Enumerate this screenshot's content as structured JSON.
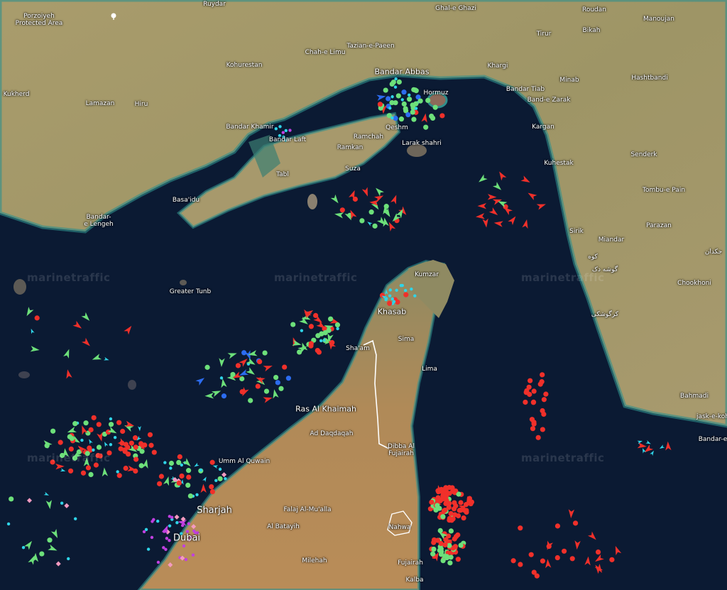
{
  "map": {
    "watermark": "marinetraffic",
    "colors": {
      "sea": "#0b1a33",
      "land_iran": "#a6996a",
      "land_uae": "#b48a58",
      "shallow_water": "#2f8f8c",
      "border": "#ffffff",
      "cargo_vessel": "#f0302a",
      "tanker_vessel": "#6de07a",
      "passenger_vessel": "#2c6cf0",
      "tug_special": "#2fd4e8",
      "pleasure_craft": "#c040e0",
      "navigation_aid": "#f49ac0"
    },
    "places": {
      "porzoiyeh": "Porzoiyeh\nProtected Area",
      "ruydar": "Ruydar",
      "ghal_e_ghazi": "Ghal-e Ghazi",
      "roudan": "Roudan",
      "manoujan": "Manoujan",
      "bikah": "Bikah",
      "tirur": "Tirur",
      "tazian": "Tazian-e-Paeen",
      "chah_e_limu": "Chah-e Limu",
      "kohurestan": "Kohurestan",
      "kukherd": "Kukherd",
      "lamazan": "Lamazan",
      "hiru": "Hiru",
      "bandar_khamir": "Bandar Khamir",
      "bandar_laft": "Bandar Laft",
      "ramchah": "Ramchah",
      "ramkan": "Ramkan",
      "suza": "Suza",
      "tabl": "Tabl",
      "basa_idu": "Basa'idu",
      "bandar_e_lengeh": "Bandar-\ne Lengeh",
      "bandar_abbas": "Bandar Abbas",
      "hormuz": "Hormuz",
      "qeshm": "Qeshm",
      "larak_shahri": "Larak shahri",
      "khargi": "Khargi",
      "minab": "Minab",
      "hashtbandi": "Hashtbandi",
      "bandar_tiab": "Bandar Tiab",
      "band_e_zarak": "Band-e Zarak",
      "kargan": "Kargan",
      "kuhestak": "Kuhestak",
      "senderk": "Senderk",
      "tombu_e_pain": "Tombu-e Pain",
      "parazan": "Parazan",
      "sirik": "Sirik",
      "miandar": "Miandar",
      "chokhoni": "Chookhoni",
      "bahmadi": "Bahmadi",
      "jask_e_kohneh": "jask-e-koh",
      "bandar_e_jask": "Bandar-e",
      "greater_tunb": "Greater Tunb",
      "kumzar": "Kumzar",
      "khasab": "Khasab",
      "sima": "Sima",
      "sha_am": "Sha'am",
      "lima": "Lima",
      "ras_al_khaimah": "Ras Al Khaimah",
      "ad_daqdaqah": "Ad Daqdaqah",
      "dibba": "Dibba Al\nFujairah",
      "umm_al_quwain": "Umm Al Quwain",
      "sharjah": "Sharjah",
      "falaj": "Falaj Al-Mu'alla",
      "al_batayih": "Al Batayih",
      "nahwa": "Nahwa",
      "dubai": "Dubai",
      "milehah": "Milehah",
      "fujairah": "Fujairah",
      "kalba": "Kalba",
      "arabic_1": "کوه",
      "arabic_2": "گوشه دک",
      "arabic_3": "کرگوشکی",
      "arabic_4": "جکدان"
    }
  }
}
